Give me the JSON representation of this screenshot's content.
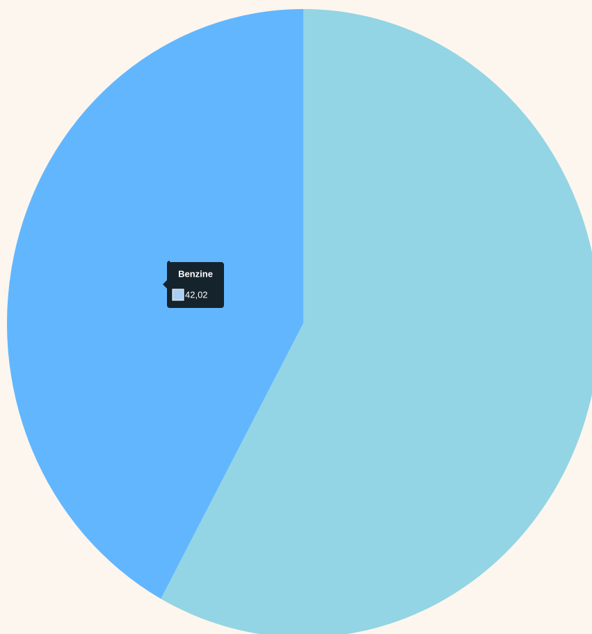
{
  "chart_data": {
    "type": "pie",
    "categories": [
      null,
      "Benzine"
    ],
    "values": [
      57.98,
      42.02
    ],
    "value_labels": [
      null,
      "42,02"
    ],
    "colors": [
      "#93d5e4",
      "#62b6fe"
    ],
    "tooltip_index": 1
  }
}
